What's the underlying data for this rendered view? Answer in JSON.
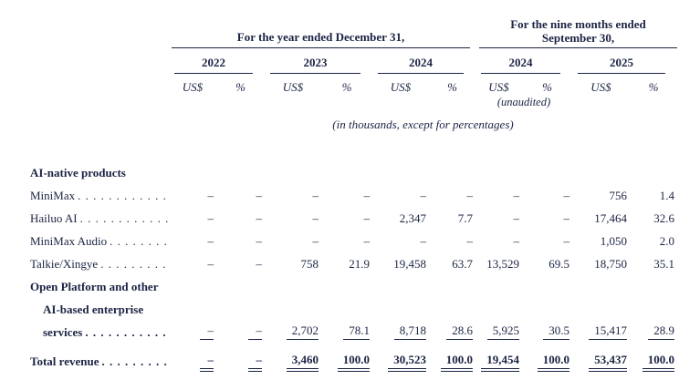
{
  "document": {
    "ink_color": "#1c2444",
    "group_headers": {
      "annual": "For the year ended December 31,",
      "interim_line1": "For the nine months ended",
      "interim_line2": "September 30,"
    },
    "years": [
      "2022",
      "2023",
      "2024",
      "2024",
      "2025"
    ],
    "unit_currency": "US$",
    "unit_percent": "%",
    "unaudited_note": "(unaudited)",
    "units_note": "(in thousands, except for percentages)",
    "rows": [
      {
        "label": "AI-native products",
        "bold": true,
        "values": []
      },
      {
        "label": "MiniMax",
        "leader": true,
        "values": [
          "–",
          "–",
          "–",
          "–",
          "–",
          "–",
          "–",
          "–",
          "756",
          "1.4"
        ]
      },
      {
        "label": "Hailuo AI",
        "leader": true,
        "values": [
          "–",
          "–",
          "–",
          "–",
          "2,347",
          "7.7",
          "–",
          "–",
          "17,464",
          "32.6"
        ]
      },
      {
        "label": "MiniMax Audio",
        "leader": true,
        "values": [
          "–",
          "–",
          "–",
          "–",
          "–",
          "–",
          "–",
          "–",
          "1,050",
          "2.0"
        ]
      },
      {
        "label": "Talkie/Xingye",
        "leader": true,
        "values": [
          "–",
          "–",
          "758",
          "21.9",
          "19,458",
          "63.7",
          "13,529",
          "69.5",
          "18,750",
          "35.1"
        ]
      },
      {
        "label": "Open Platform and other",
        "bold": true,
        "values": []
      },
      {
        "label": "AI-based enterprise",
        "bold": true,
        "indent": true,
        "values": []
      },
      {
        "label": "services",
        "bold": true,
        "indent": true,
        "leader": true,
        "underline": "single",
        "values": [
          "–",
          "–",
          "2,702",
          "78.1",
          "8,718",
          "28.6",
          "5,925",
          "30.5",
          "15,417",
          "28.9"
        ]
      },
      {
        "label": "Total revenue",
        "bold": true,
        "leader": true,
        "underline": "double",
        "bold_values": true,
        "total_gap": true,
        "values": [
          "–",
          "–",
          "3,460",
          "100.0",
          "30,523",
          "100.0",
          "19,454",
          "100.0",
          "53,437",
          "100.0"
        ]
      }
    ]
  }
}
